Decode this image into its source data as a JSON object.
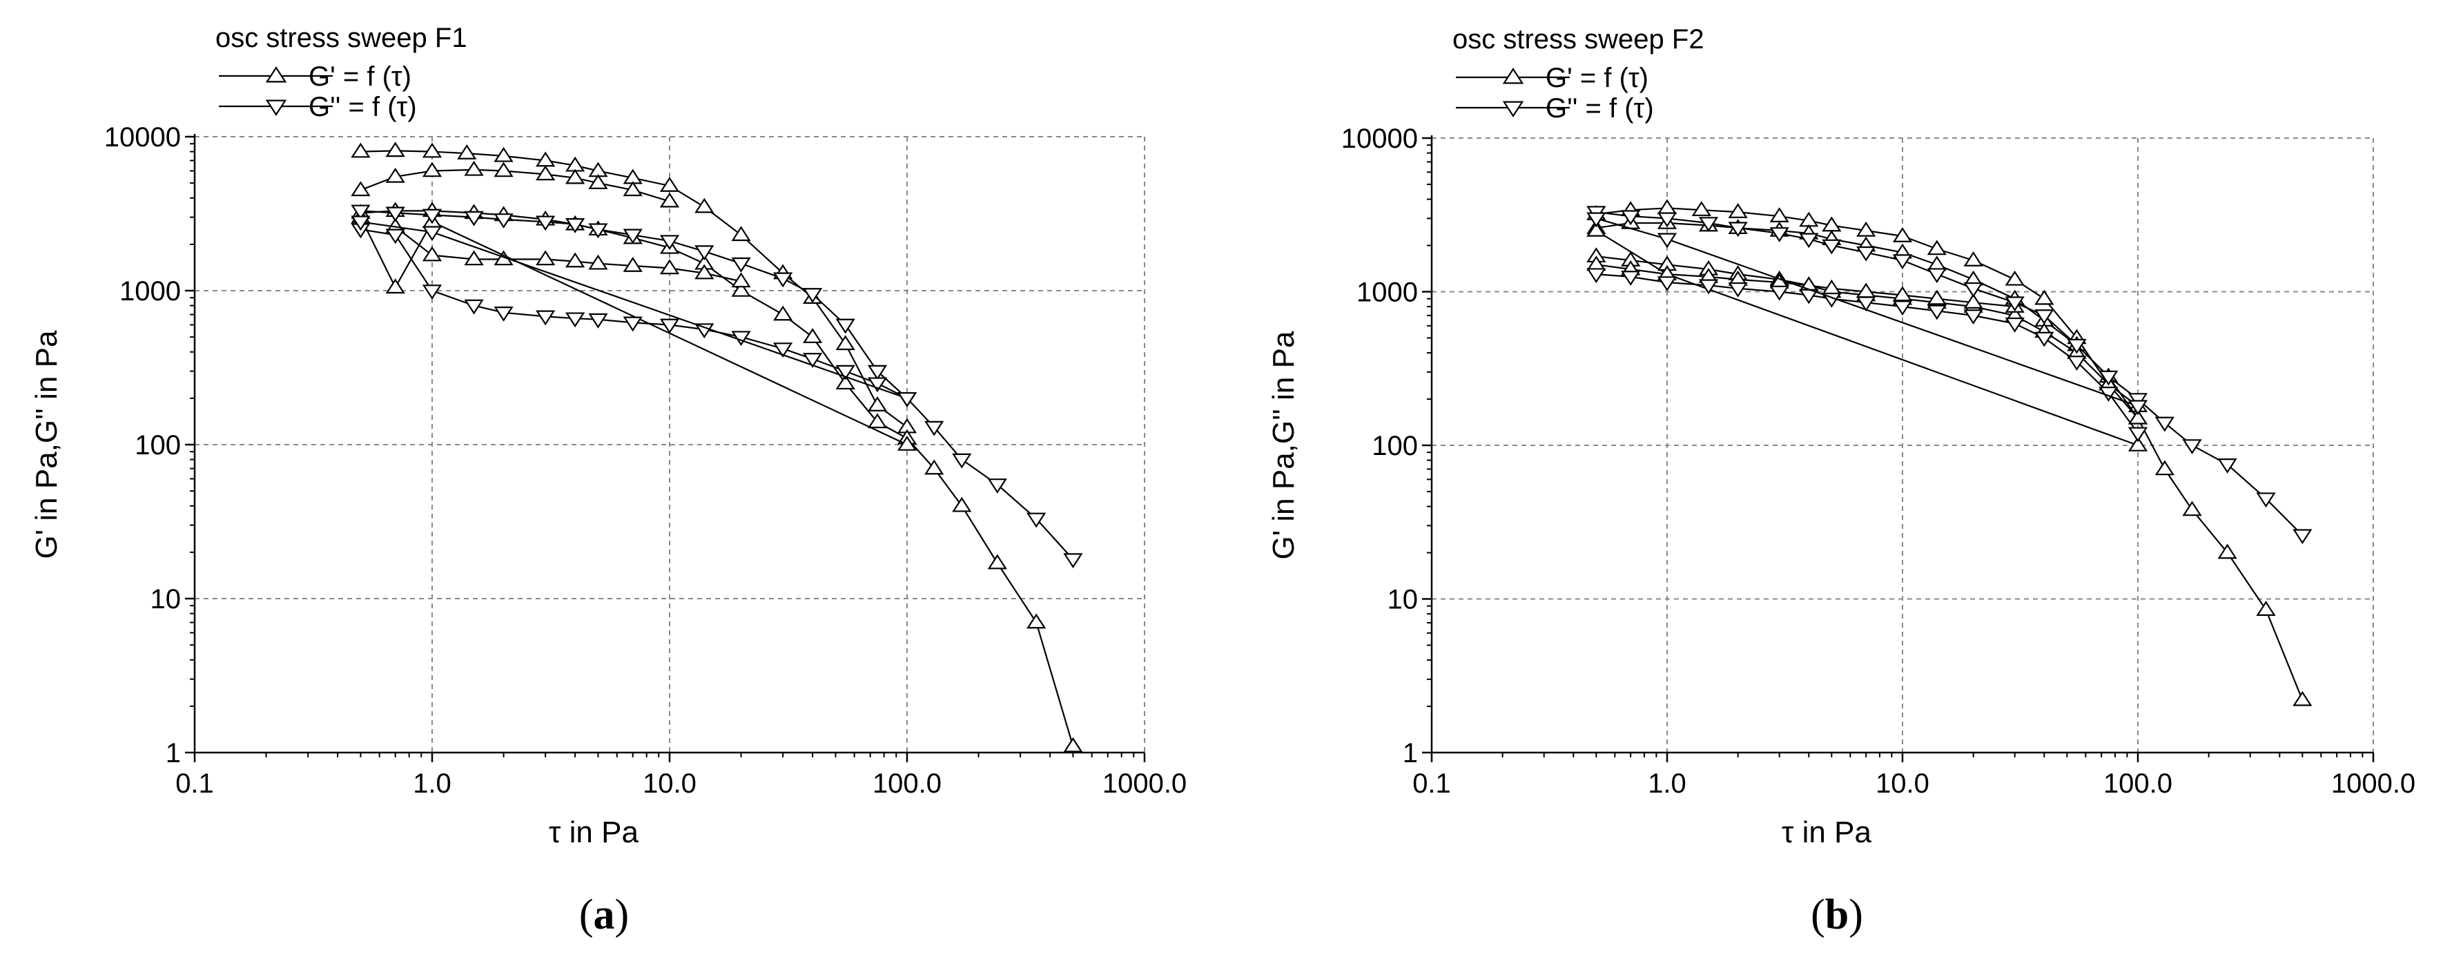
{
  "chart_data": [
    {
      "type": "scatter",
      "panel_label": "a",
      "title": "osc stress sweep F1",
      "xlabel": "τ in Pa",
      "ylabel": "G' in Pa,G'' in Pa",
      "xscale": "log",
      "yscale": "log",
      "xlim": [
        0.1,
        1000
      ],
      "ylim": [
        1,
        10000
      ],
      "x_ticks": [
        "0.1",
        "1.0",
        "10.0",
        "100.0",
        "1000.0"
      ],
      "y_ticks": [
        "1",
        "10",
        "100",
        "1000",
        "10000"
      ],
      "grid": true,
      "legend_position": "top-left",
      "series": [
        {
          "name": "G' = f (τ)",
          "marker": "triangle-up",
          "curves": [
            [
              [
                0.5,
                8000
              ],
              [
                0.7,
                8100
              ],
              [
                1.0,
                8000
              ],
              [
                1.4,
                7800
              ],
              [
                2,
                7500
              ],
              [
                3,
                7000
              ],
              [
                4,
                6500
              ],
              [
                5,
                6000
              ],
              [
                7,
                5400
              ],
              [
                10,
                4800
              ],
              [
                14,
                3500
              ],
              [
                20,
                2300
              ],
              [
                30,
                1300
              ],
              [
                40,
                900
              ],
              [
                55,
                450
              ],
              [
                75,
                180
              ],
              [
                100,
                130
              ]
            ],
            [
              [
                0.5,
                4500
              ],
              [
                0.7,
                5500
              ],
              [
                1.0,
                6000
              ],
              [
                1.5,
                6100
              ],
              [
                2,
                6000
              ],
              [
                3,
                5700
              ],
              [
                4,
                5400
              ],
              [
                5,
                5000
              ],
              [
                7,
                4500
              ],
              [
                10,
                3800
              ]
            ],
            [
              [
                0.5,
                3200
              ],
              [
                0.7,
                3300
              ],
              [
                1,
                3300
              ],
              [
                1.5,
                3200
              ],
              [
                2,
                3100
              ],
              [
                3,
                2900
              ],
              [
                4,
                2700
              ],
              [
                5,
                2500
              ],
              [
                7,
                2200
              ],
              [
                10,
                1900
              ],
              [
                14,
                1500
              ],
              [
                20,
                1000
              ],
              [
                30,
                700
              ],
              [
                40,
                500
              ],
              [
                55,
                250
              ],
              [
                75,
                140
              ],
              [
                100,
                110
              ],
              [
                130,
                70
              ],
              [
                170,
                40
              ],
              [
                240,
                17
              ],
              [
                350,
                7
              ],
              [
                500,
                1.1
              ]
            ],
            [
              [
                0.7,
                2600
              ],
              [
                1.0,
                1700
              ],
              [
                1.5,
                1600
              ],
              [
                2,
                1600
              ],
              [
                3,
                1600
              ],
              [
                4,
                1550
              ],
              [
                5,
                1500
              ],
              [
                7,
                1450
              ],
              [
                10,
                1400
              ],
              [
                14,
                1300
              ],
              [
                20,
                1150
              ]
            ],
            [
              [
                0.5,
                3000
              ],
              [
                0.7,
                1050
              ],
              [
                1,
                2800
              ],
              [
                100,
                100
              ]
            ]
          ]
        },
        {
          "name": "G'' = f (τ)",
          "marker": "triangle-down",
          "curves": [
            [
              [
                0.5,
                3300
              ],
              [
                0.7,
                3200
              ],
              [
                1,
                3100
              ],
              [
                1.5,
                3000
              ],
              [
                2,
                2900
              ],
              [
                3,
                2800
              ],
              [
                4,
                2700
              ],
              [
                5,
                2500
              ],
              [
                7,
                2300
              ],
              [
                10,
                2100
              ],
              [
                14,
                1800
              ],
              [
                20,
                1500
              ],
              [
                30,
                1200
              ],
              [
                40,
                950
              ],
              [
                55,
                600
              ],
              [
                75,
                300
              ],
              [
                100,
                200
              ],
              [
                130,
                130
              ],
              [
                170,
                80
              ],
              [
                240,
                55
              ],
              [
                350,
                33
              ],
              [
                500,
                18
              ]
            ],
            [
              [
                0.5,
                2500
              ],
              [
                0.7,
                2300
              ],
              [
                1,
                1000
              ],
              [
                1.5,
                800
              ],
              [
                2,
                720
              ],
              [
                3,
                680
              ],
              [
                4,
                660
              ],
              [
                5,
                650
              ],
              [
                7,
                620
              ],
              [
                10,
                600
              ],
              [
                14,
                560
              ],
              [
                20,
                500
              ],
              [
                30,
                420
              ],
              [
                40,
                360
              ],
              [
                55,
                300
              ],
              [
                75,
                250
              ],
              [
                100,
                200
              ]
            ],
            [
              [
                0.5,
                2800
              ],
              [
                1,
                2400
              ],
              [
                100,
                200
              ]
            ]
          ]
        }
      ]
    },
    {
      "type": "scatter",
      "panel_label": "b",
      "title": "osc stress sweep F2",
      "xlabel": "τ in Pa",
      "ylabel": "G' in Pa,G'' in Pa",
      "xscale": "log",
      "yscale": "log",
      "xlim": [
        0.1,
        1000
      ],
      "ylim": [
        1,
        10000
      ],
      "x_ticks": [
        "0.1",
        "1.0",
        "10.0",
        "100.0",
        "1000.0"
      ],
      "y_ticks": [
        "1",
        "10",
        "100",
        "1000",
        "10000"
      ],
      "grid": true,
      "legend_position": "top-left",
      "series": [
        {
          "name": "G' = f (τ)",
          "marker": "triangle-up",
          "curves": [
            [
              [
                0.5,
                3200
              ],
              [
                0.7,
                3400
              ],
              [
                1,
                3500
              ],
              [
                1.4,
                3400
              ],
              [
                2,
                3300
              ],
              [
                3,
                3100
              ],
              [
                4,
                2900
              ],
              [
                5,
                2700
              ],
              [
                7,
                2500
              ],
              [
                10,
                2300
              ],
              [
                14,
                1900
              ],
              [
                20,
                1600
              ],
              [
                30,
                1200
              ],
              [
                40,
                900
              ],
              [
                55,
                500
              ],
              [
                75,
                250
              ],
              [
                100,
                180
              ]
            ],
            [
              [
                0.5,
                2600
              ],
              [
                0.7,
                2800
              ],
              [
                1,
                2800
              ],
              [
                1.5,
                2700
              ],
              [
                2,
                2600
              ],
              [
                3,
                2500
              ],
              [
                4,
                2400
              ],
              [
                5,
                2200
              ],
              [
                7,
                2000
              ],
              [
                10,
                1800
              ],
              [
                14,
                1500
              ],
              [
                20,
                1200
              ],
              [
                30,
                900
              ],
              [
                40,
                650
              ],
              [
                55,
                450
              ],
              [
                75,
                280
              ],
              [
                100,
                150
              ],
              [
                130,
                70
              ],
              [
                170,
                38
              ],
              [
                240,
                20
              ],
              [
                350,
                8.5
              ],
              [
                500,
                2.2
              ]
            ],
            [
              [
                0.5,
                1700
              ],
              [
                0.7,
                1600
              ],
              [
                1,
                1500
              ],
              [
                1.5,
                1400
              ],
              [
                2,
                1300
              ],
              [
                3,
                1200
              ],
              [
                4,
                1100
              ],
              [
                5,
                1000
              ],
              [
                7,
                950
              ],
              [
                10,
                900
              ],
              [
                14,
                850
              ],
              [
                20,
                800
              ],
              [
                30,
                700
              ],
              [
                40,
                550
              ],
              [
                55,
                400
              ],
              [
                75,
                250
              ],
              [
                100,
                150
              ]
            ],
            [
              [
                0.5,
                1500
              ],
              [
                0.7,
                1400
              ],
              [
                1,
                1300
              ],
              [
                1.5,
                1250
              ],
              [
                2,
                1200
              ],
              [
                3,
                1150
              ],
              [
                4,
                1100
              ],
              [
                5,
                1050
              ],
              [
                7,
                1000
              ],
              [
                10,
                950
              ],
              [
                14,
                900
              ],
              [
                20,
                850
              ],
              [
                30,
                800
              ]
            ],
            [
              [
                0.5,
                2500
              ],
              [
                1,
                1300
              ],
              [
                100,
                100
              ]
            ]
          ]
        },
        {
          "name": "G'' = f (τ)",
          "marker": "triangle-down",
          "curves": [
            [
              [
                0.5,
                3300
              ],
              [
                0.7,
                3100
              ],
              [
                1,
                3000
              ],
              [
                1.5,
                2800
              ],
              [
                2,
                2600
              ],
              [
                3,
                2400
              ],
              [
                4,
                2200
              ],
              [
                5,
                2000
              ],
              [
                7,
                1800
              ],
              [
                10,
                1600
              ],
              [
                14,
                1300
              ],
              [
                20,
                1050
              ],
              [
                30,
                850
              ],
              [
                40,
                700
              ],
              [
                55,
                450
              ],
              [
                75,
                280
              ],
              [
                100,
                200
              ],
              [
                130,
                140
              ],
              [
                170,
                100
              ],
              [
                240,
                75
              ],
              [
                350,
                45
              ],
              [
                500,
                26
              ]
            ],
            [
              [
                0.5,
                1300
              ],
              [
                0.7,
                1250
              ],
              [
                1,
                1150
              ],
              [
                1.5,
                1100
              ],
              [
                2,
                1050
              ],
              [
                3,
                1000
              ],
              [
                4,
                950
              ],
              [
                5,
                900
              ],
              [
                7,
                850
              ],
              [
                10,
                800
              ],
              [
                14,
                750
              ],
              [
                20,
                700
              ],
              [
                30,
                620
              ],
              [
                40,
                500
              ],
              [
                55,
                350
              ],
              [
                75,
                220
              ],
              [
                100,
                120
              ]
            ],
            [
              [
                0.5,
                3000
              ],
              [
                1,
                2200
              ],
              [
                100,
                180
              ]
            ]
          ]
        }
      ]
    }
  ]
}
